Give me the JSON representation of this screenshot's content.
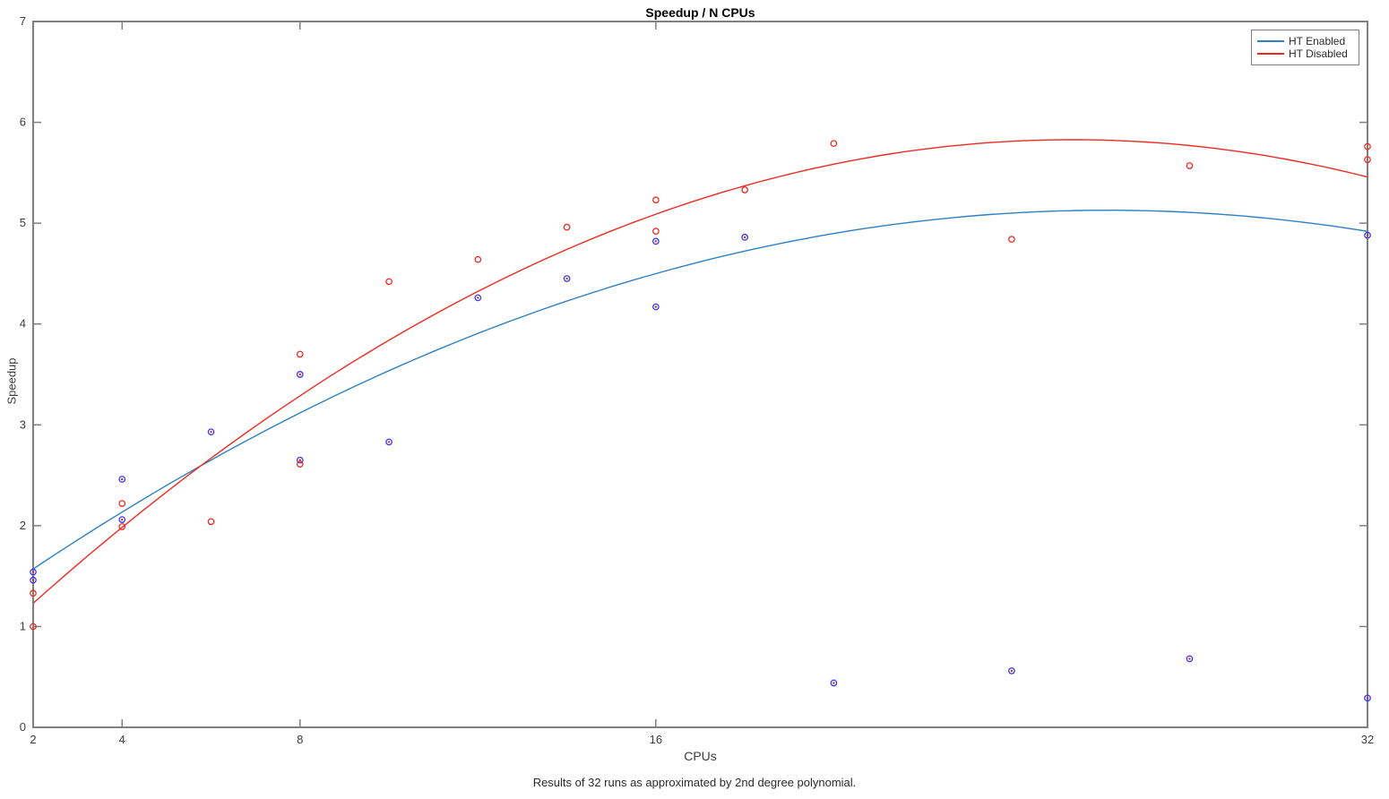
{
  "chart_data": {
    "type": "scatter",
    "title": "Speedup / N CPUs",
    "xlabel": "CPUs",
    "ylabel": "Speedup",
    "caption": "Results of 32 runs as approximated by 2nd degree polynomial.",
    "x_scale": "linear",
    "xlim": [
      2,
      32
    ],
    "ylim": [
      0,
      7
    ],
    "x_ticks": [
      2,
      4,
      8,
      16,
      32
    ],
    "y_ticks": [
      0,
      1,
      2,
      3,
      4,
      5,
      6,
      7
    ],
    "grid": false,
    "legend_position": "top-right",
    "colors": {
      "axis": "#808080",
      "tick_label": "#3d3d3d",
      "blue_line": "#2e81c4",
      "red_line": "#ee2b22",
      "blue_marker_edge": "#3a35f1",
      "blue_marker_center": "#b8302c"
    },
    "series": [
      {
        "name": "HT Enabled",
        "line_color": "#2e81c4",
        "marker_edge": "#3a35f1",
        "marker_center": "#b8302c",
        "fit_poly": [
          0.9562,
          0.3191,
          -0.006102
        ],
        "points": [
          [
            2,
            1.54
          ],
          [
            2,
            1.46
          ],
          [
            4,
            2.46
          ],
          [
            4,
            2.06
          ],
          [
            6,
            2.93
          ],
          [
            8,
            3.5
          ],
          [
            8,
            2.65
          ],
          [
            10,
            2.83
          ],
          [
            12,
            4.26
          ],
          [
            14,
            4.45
          ],
          [
            16,
            4.82
          ],
          [
            16,
            4.17
          ],
          [
            18,
            4.86
          ],
          [
            20,
            0.44
          ],
          [
            24,
            0.56
          ],
          [
            28,
            0.68
          ],
          [
            32,
            4.88
          ],
          [
            32,
            0.29
          ]
        ]
      },
      {
        "name": "HT Disabled",
        "line_color": "#ee2b22",
        "marker_edge": "#ee2b22",
        "marker_center": null,
        "fit_poly": [
          0.4093,
          0.4272,
          -0.00842
        ],
        "points": [
          [
            2,
            1.33
          ],
          [
            2,
            1.0
          ],
          [
            4,
            2.22
          ],
          [
            4,
            1.99
          ],
          [
            6,
            2.04
          ],
          [
            8,
            3.7
          ],
          [
            8,
            2.61
          ],
          [
            10,
            4.42
          ],
          [
            12,
            4.64
          ],
          [
            14,
            4.96
          ],
          [
            16,
            5.23
          ],
          [
            16,
            4.92
          ],
          [
            18,
            5.33
          ],
          [
            20,
            5.79
          ],
          [
            24,
            4.84
          ],
          [
            28,
            5.57
          ],
          [
            32,
            5.76
          ],
          [
            32,
            5.63
          ]
        ]
      }
    ]
  }
}
